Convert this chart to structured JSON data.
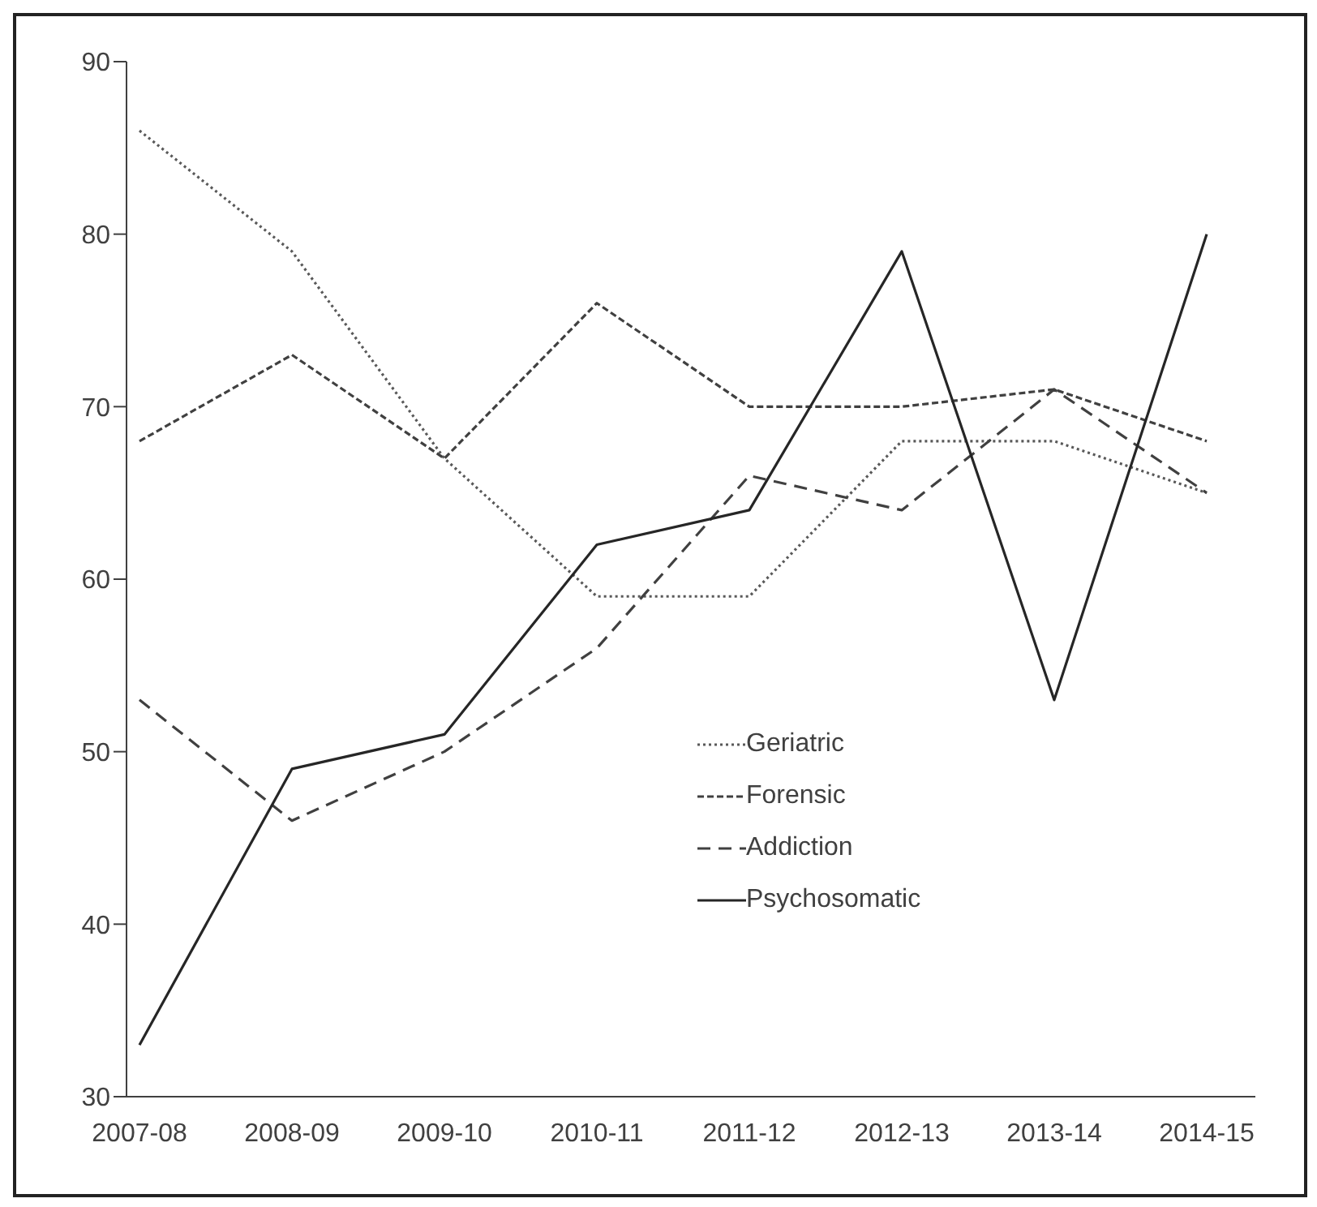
{
  "chart_data": {
    "type": "line",
    "categories": [
      "2007-08",
      "2008-09",
      "2009-10",
      "2010-11",
      "2011-12",
      "2012-13",
      "2013-14",
      "2014-15"
    ],
    "series": [
      {
        "name": "Geriatric",
        "color": "#595959",
        "line_style": "dotted",
        "values": [
          86,
          79,
          67,
          59,
          59,
          68,
          68,
          65
        ]
      },
      {
        "name": "Forensic",
        "color": "#404040",
        "line_style": "dashed",
        "values": [
          68,
          73,
          67,
          76,
          70,
          70,
          71,
          68
        ]
      },
      {
        "name": "Addiction",
        "color": "#404040",
        "line_style": "longdashed",
        "values": [
          53,
          46,
          50,
          56,
          66,
          64,
          71,
          65
        ]
      },
      {
        "name": "Psychosomatic",
        "color": "#262626",
        "line_style": "solid",
        "values": [
          33,
          49,
          51,
          62,
          64,
          79,
          53,
          80
        ]
      }
    ],
    "ylim": [
      30,
      90
    ],
    "yticks": [
      30,
      40,
      50,
      60,
      70,
      80,
      90
    ],
    "grid": false,
    "legend": "bottom right",
    "marker": "none"
  }
}
